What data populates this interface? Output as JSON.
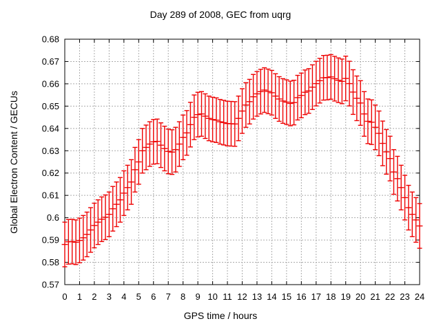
{
  "title": "Day 289 of 2008, GEC from uqrg",
  "axes": {
    "x": {
      "label": "GPS time / hours",
      "min": 0,
      "max": 24,
      "tick_values": [
        0,
        1,
        2,
        3,
        4,
        5,
        6,
        7,
        8,
        9,
        10,
        11,
        12,
        13,
        14,
        15,
        16,
        17,
        18,
        19,
        20,
        21,
        22,
        23,
        24
      ],
      "tick_labels": [
        "0",
        "1",
        "2",
        "3",
        "4",
        "5",
        "6",
        "7",
        "8",
        "9",
        "10",
        "11",
        "12",
        "13",
        "14",
        "15",
        "16",
        "17",
        "18",
        "19",
        "20",
        "21",
        "22",
        "23",
        "24"
      ]
    },
    "y": {
      "label": "Global Electron Content / GECUs",
      "min": 0.57,
      "max": 0.68,
      "tick_values": [
        0.57,
        0.58,
        0.59,
        0.6,
        0.61,
        0.62,
        0.63,
        0.64,
        0.65,
        0.66,
        0.67,
        0.68
      ],
      "tick_labels": [
        "0.57",
        "0.58",
        "0.59",
        "0.6",
        "0.61",
        "0.62",
        "0.63",
        "0.64",
        "0.65",
        "0.66",
        "0.67",
        "0.68"
      ]
    }
  },
  "style": {
    "series_color": "#ee0000",
    "grid_color": "#aaaaaa",
    "axis_color": "#000000",
    "text_color": "#000000",
    "background": "#ffffff"
  },
  "chart_data": {
    "type": "scatter",
    "subtype": "errorbars",
    "title": "Day 289 of 2008, GEC from uqrg",
    "xlabel": "GPS time / hours",
    "ylabel": "Global Electron Content / GECUs",
    "xlim": [
      0,
      24
    ],
    "ylim": [
      0.57,
      0.68
    ],
    "grid": true,
    "legend": false,
    "x": [
      0,
      0.25,
      0.5,
      0.75,
      1,
      1.25,
      1.5,
      1.75,
      2,
      2.25,
      2.5,
      2.75,
      3,
      3.25,
      3.5,
      3.75,
      4,
      4.25,
      4.5,
      4.75,
      5,
      5.25,
      5.5,
      5.75,
      6,
      6.25,
      6.5,
      6.75,
      7,
      7.25,
      7.5,
      7.75,
      8,
      8.25,
      8.5,
      8.75,
      9,
      9.25,
      9.5,
      9.75,
      10,
      10.25,
      10.5,
      10.75,
      11,
      11.25,
      11.5,
      11.75,
      12,
      12.25,
      12.5,
      12.75,
      13,
      13.25,
      13.5,
      13.75,
      14,
      14.25,
      14.5,
      14.75,
      15,
      15.25,
      15.5,
      15.75,
      16,
      16.25,
      16.5,
      16.75,
      17,
      17.25,
      17.5,
      17.75,
      18,
      18.25,
      18.5,
      18.75,
      19,
      19.25,
      19.5,
      19.75,
      20,
      20.25,
      20.5,
      20.75,
      21,
      21.25,
      21.5,
      21.75,
      22,
      22.25,
      22.5,
      22.75,
      23,
      23.25,
      23.5,
      23.75,
      24
    ],
    "y": [
      0.588,
      0.5892,
      0.5893,
      0.589,
      0.5898,
      0.591,
      0.5925,
      0.5945,
      0.5965,
      0.598,
      0.5993,
      0.6002,
      0.6015,
      0.604,
      0.606,
      0.608,
      0.611,
      0.6135,
      0.616,
      0.6215,
      0.625,
      0.63,
      0.6315,
      0.633,
      0.634,
      0.6342,
      0.6325,
      0.631,
      0.6297,
      0.6294,
      0.6305,
      0.633,
      0.636,
      0.638,
      0.6417,
      0.645,
      0.6462,
      0.6465,
      0.6455,
      0.6445,
      0.644,
      0.6437,
      0.643,
      0.6426,
      0.6422,
      0.6421,
      0.642,
      0.6445,
      0.6478,
      0.6505,
      0.652,
      0.6542,
      0.6555,
      0.6565,
      0.6572,
      0.6566,
      0.656,
      0.6545,
      0.6532,
      0.6523,
      0.6518,
      0.6512,
      0.6516,
      0.6538,
      0.6548,
      0.6562,
      0.6568,
      0.6585,
      0.6601,
      0.6614,
      0.6627,
      0.6628,
      0.6631,
      0.6623,
      0.6616,
      0.6611,
      0.6624,
      0.6601,
      0.6563,
      0.6535,
      0.6514,
      0.6465,
      0.6432,
      0.6428,
      0.6405,
      0.6378,
      0.6333,
      0.6295,
      0.6265,
      0.6205,
      0.6175,
      0.6135,
      0.609,
      0.6045,
      0.6015,
      0.599,
      0.5963
    ],
    "yerr": 0.01
  }
}
